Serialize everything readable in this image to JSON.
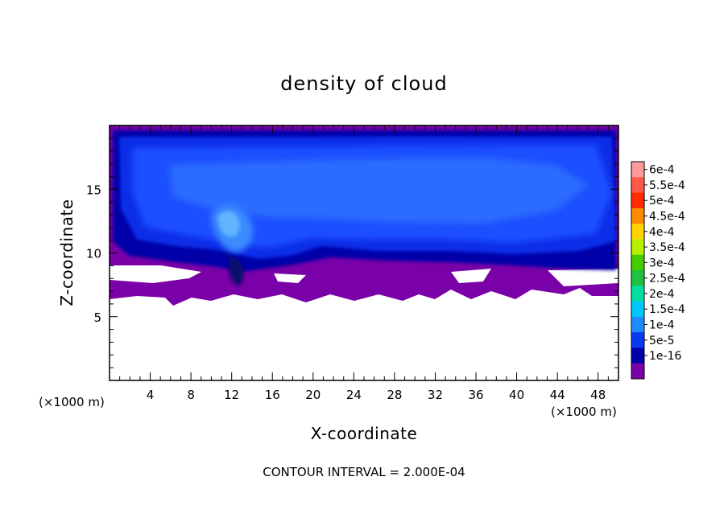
{
  "chart_data": {
    "type": "heatmap",
    "title": "density of cloud",
    "xlabel": "X-coordinate",
    "ylabel": "Z-coordinate",
    "x_unit": "(×1000 m)",
    "y_unit": "(×1000 m)",
    "xlim": [
      0,
      50
    ],
    "ylim": [
      0,
      20
    ],
    "x_ticks": [
      4,
      8,
      12,
      16,
      20,
      24,
      28,
      32,
      36,
      40,
      44,
      48
    ],
    "y_ticks": [
      5,
      10,
      15
    ],
    "footnote": "CONTOUR INTERVAL = 2.000E-04",
    "colorbar": {
      "labels": [
        "6e-4",
        "5.5e-4",
        "5e-4",
        "4.5e-4",
        "4e-4",
        "3.5e-4",
        "3e-4",
        "2.5e-4",
        "2e-4",
        "1.5e-4",
        "1e-4",
        "5e-5",
        "1e-16"
      ],
      "levels": [
        0.0006,
        0.00055,
        0.0005,
        0.00045,
        0.0004,
        0.00035,
        0.0003,
        0.00025,
        0.0002,
        0.00015,
        0.0001,
        5e-05,
        1e-16
      ],
      "colors": [
        "#ff9a9a",
        "#ff5a48",
        "#ff2a00",
        "#ff8c00",
        "#ffd400",
        "#b8ee00",
        "#44cc00",
        "#20c040",
        "#00e0a0",
        "#00c8ff",
        "#1e8cff",
        "#0838f0",
        "#0000a8",
        "#7a00a8"
      ]
    },
    "field_summary": {
      "cloud_layer_z_range": [
        6.5,
        19.8
      ],
      "cloud_free_below_z": 6.2,
      "max_value_region": {
        "x": [
          10,
          13
        ],
        "z": [
          11.5,
          13.8
        ],
        "level": "1.5e-4"
      },
      "bulk_level": "1e-4"
    }
  }
}
